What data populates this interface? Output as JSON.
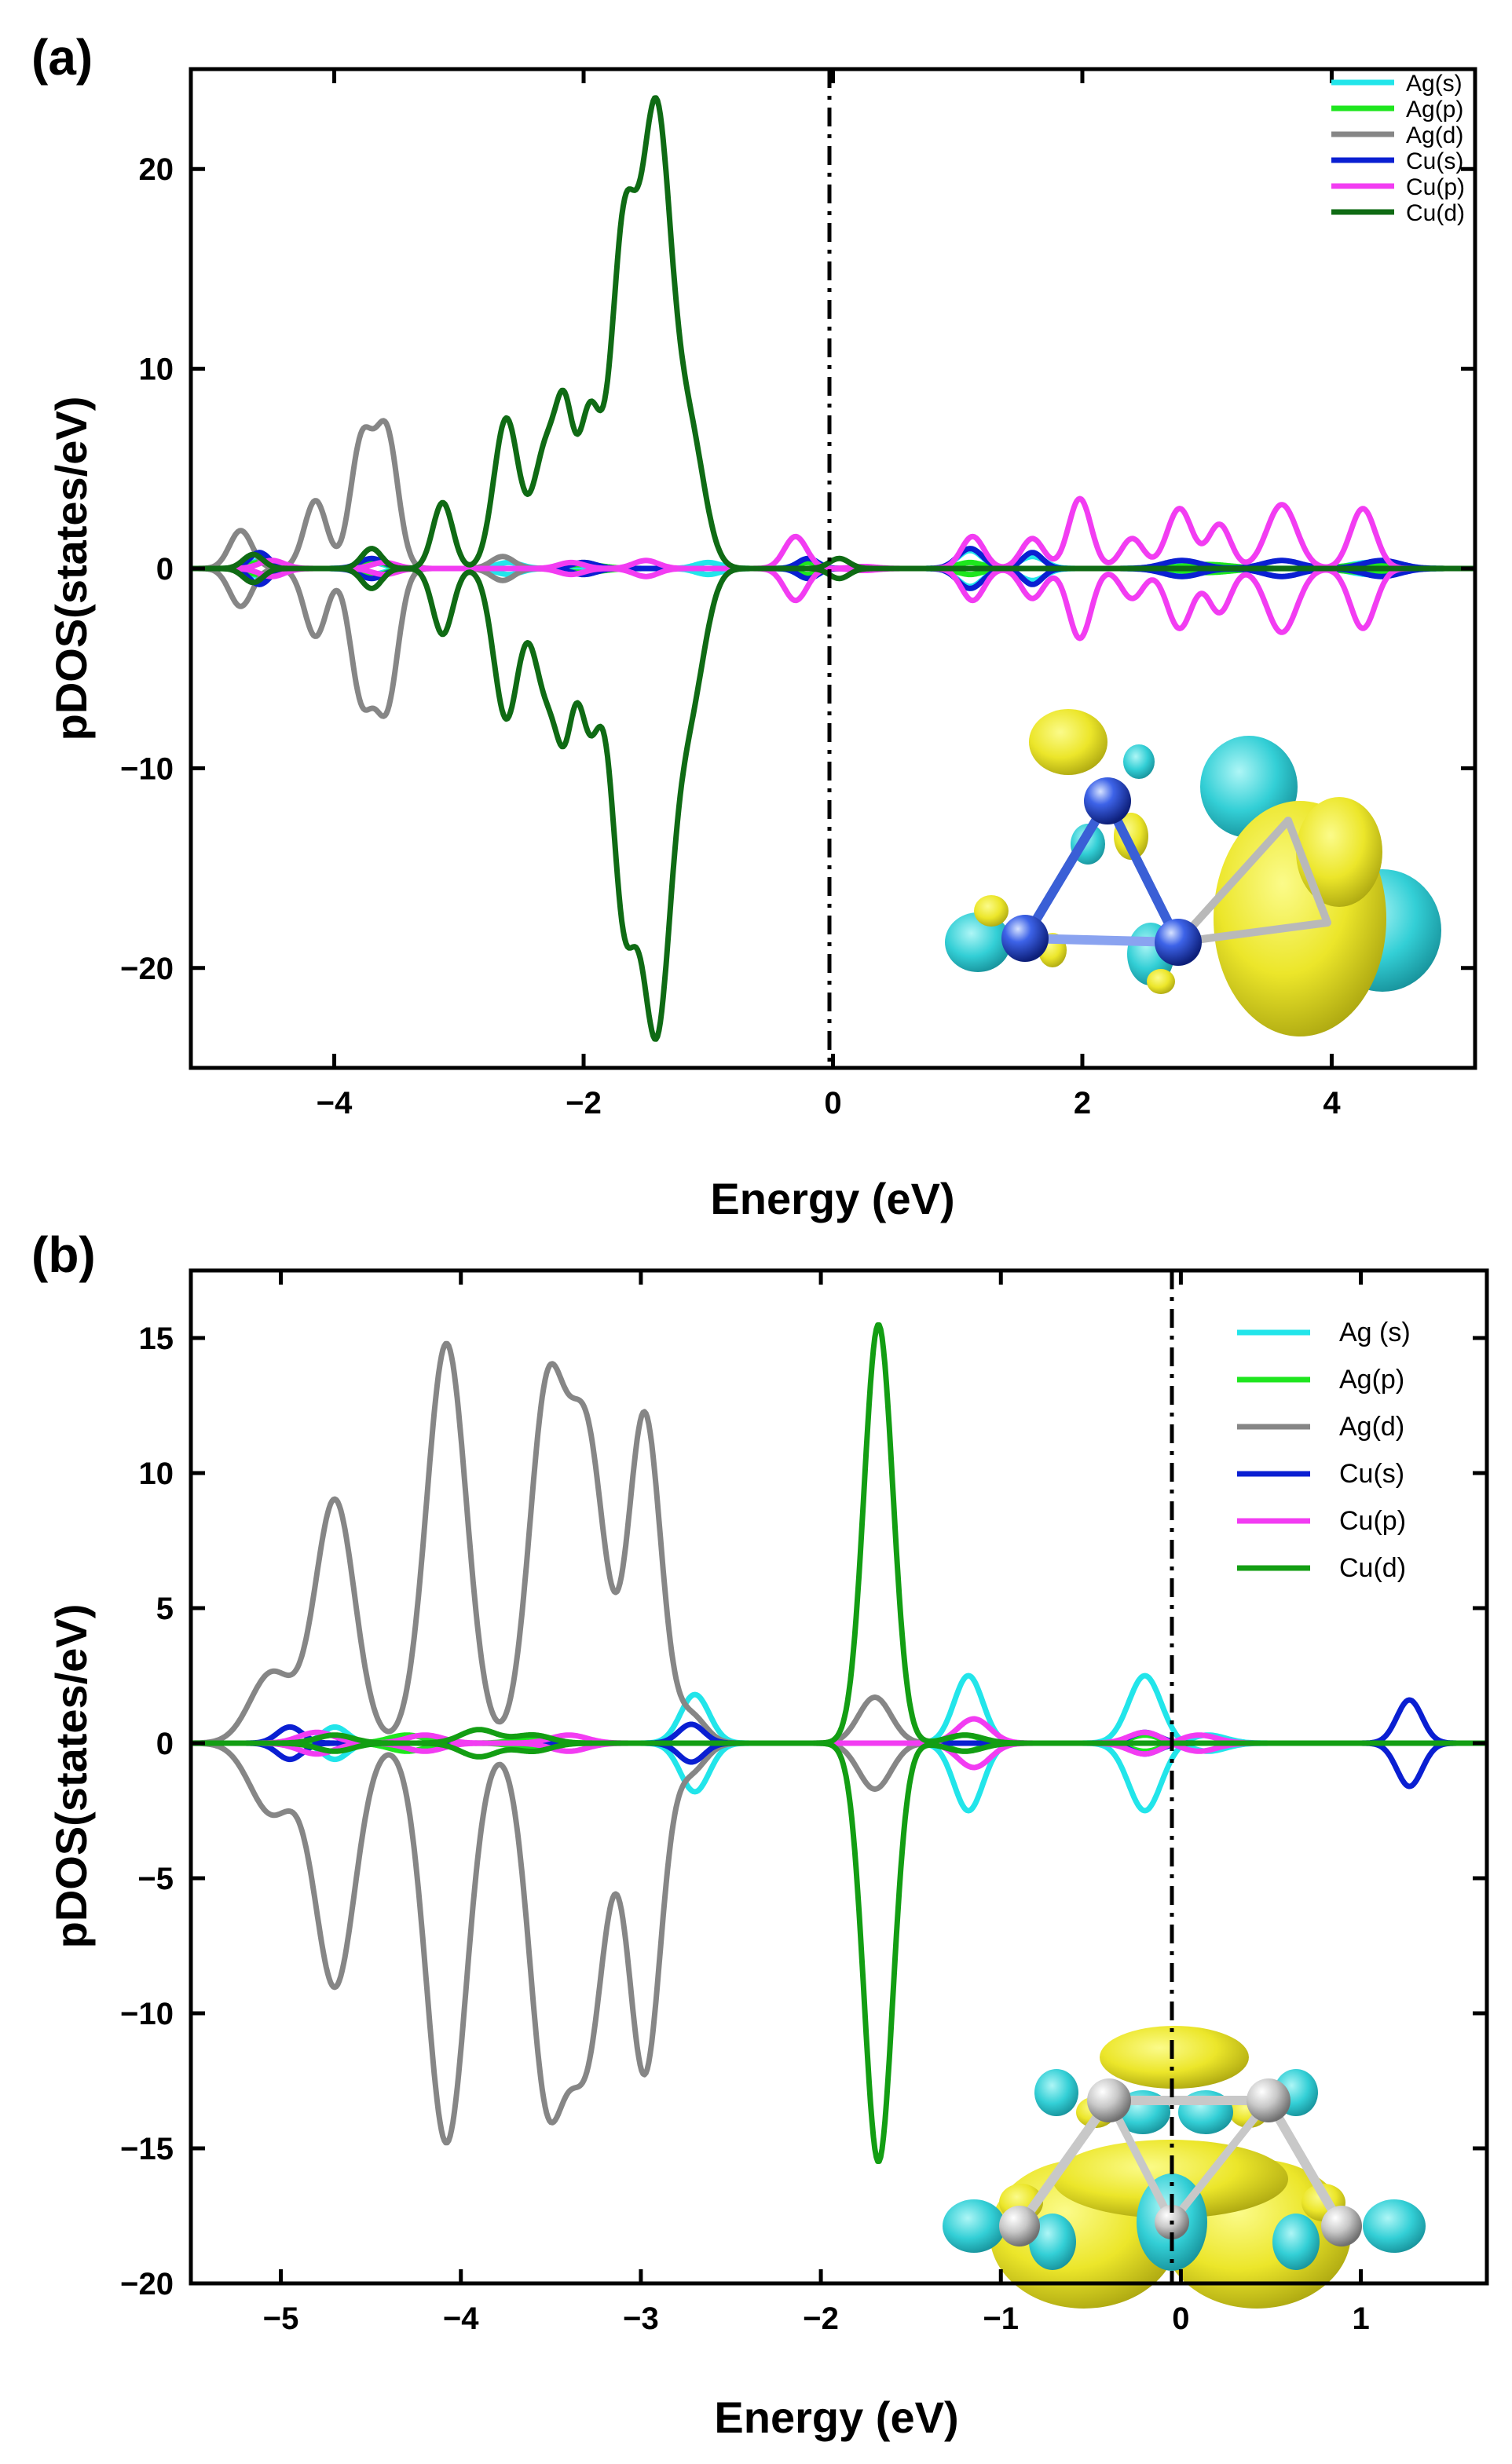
{
  "chart_data": [
    {
      "panel": "(a)",
      "type": "line",
      "xlabel": "Energy (eV)",
      "ylabel": "pDOS(states/eV)",
      "xlim": [
        -5.15,
        5.15
      ],
      "ylim": [
        -25,
        25
      ],
      "xticks": [
        -4,
        -2,
        0,
        2,
        4
      ],
      "xtick_labels": [
        "−4",
        "−2",
        "0",
        "2",
        "4"
      ],
      "yticks": [
        -20,
        -10,
        0,
        10,
        20
      ],
      "ytick_labels": [
        "−20",
        "−10",
        "0",
        "10",
        "20"
      ],
      "fermi_level": 0,
      "inset": "isosurface-molecule",
      "series": [
        {
          "name": "Ag(s)",
          "color": "#22e5ea",
          "peaks": [
            [
              -4.6,
              0.4,
              0.08
            ],
            [
              -3.7,
              0.3,
              0.1
            ],
            [
              -2.6,
              0.3,
              0.1
            ],
            [
              -1.0,
              0.3,
              0.1
            ],
            [
              -0.2,
              0.5,
              0.08
            ],
            [
              1.1,
              0.9,
              0.1
            ],
            [
              1.6,
              0.6,
              0.1
            ],
            [
              2.8,
              0.3,
              0.15
            ],
            [
              4.3,
              0.3,
              0.15
            ]
          ]
        },
        {
          "name": "Ag(p)",
          "color": "#1ee61e",
          "peaks": [
            [
              -4.6,
              0.3,
              0.1
            ],
            [
              -3.7,
              0.4,
              0.1
            ],
            [
              -2.0,
              0.2,
              0.15
            ],
            [
              -0.2,
              0.3,
              0.08
            ],
            [
              1.1,
              0.3,
              0.1
            ],
            [
              3.0,
              0.2,
              0.2
            ],
            [
              4.3,
              0.2,
              0.2
            ]
          ]
        },
        {
          "name": "Ag(d)",
          "color": "#868686",
          "peaks": [
            [
              -4.75,
              1.9,
              0.09
            ],
            [
              -4.15,
              3.4,
              0.09
            ],
            [
              -3.78,
              6.3,
              0.09
            ],
            [
              -3.58,
              6.7,
              0.09
            ],
            [
              -2.65,
              0.6,
              0.09
            ],
            [
              -2.0,
              0.3,
              0.1
            ]
          ]
        },
        {
          "name": "Cu(s)",
          "color": "#0a1fd2",
          "peaks": [
            [
              -4.6,
              0.8,
              0.08
            ],
            [
              -3.7,
              0.5,
              0.1
            ],
            [
              -2.0,
              0.3,
              0.1
            ],
            [
              -0.2,
              0.5,
              0.08
            ],
            [
              1.1,
              1.0,
              0.1
            ],
            [
              1.6,
              0.8,
              0.08
            ],
            [
              2.8,
              0.4,
              0.15
            ],
            [
              3.6,
              0.4,
              0.15
            ],
            [
              4.4,
              0.4,
              0.15
            ]
          ]
        },
        {
          "name": "Cu(p)",
          "color": "#f23cf2",
          "peaks": [
            [
              -4.5,
              0.4,
              0.1
            ],
            [
              -3.6,
              0.3,
              0.1
            ],
            [
              -2.1,
              0.3,
              0.1
            ],
            [
              -1.5,
              0.4,
              0.1
            ],
            [
              -0.3,
              1.6,
              0.09
            ],
            [
              0.25,
              -0.1,
              0.1
            ],
            [
              1.12,
              1.6,
              0.09
            ],
            [
              1.6,
              1.5,
              0.09
            ],
            [
              1.98,
              3.5,
              0.09
            ],
            [
              2.4,
              1.5,
              0.09
            ],
            [
              2.78,
              3.0,
              0.1
            ],
            [
              3.1,
              2.2,
              0.09
            ],
            [
              3.6,
              3.2,
              0.12
            ],
            [
              4.25,
              3.0,
              0.1
            ]
          ]
        },
        {
          "name": "Cu(d)",
          "color": "#0f6b14",
          "peaks": [
            [
              -4.65,
              0.7,
              0.08
            ],
            [
              -3.7,
              1.0,
              0.08
            ],
            [
              -3.13,
              3.3,
              0.08
            ],
            [
              -2.62,
              7.5,
              0.1
            ],
            [
              -2.3,
              6.0,
              0.1
            ],
            [
              -2.15,
              6.2,
              0.07
            ],
            [
              -1.95,
              7.8,
              0.09
            ],
            [
              -1.68,
              16.0,
              0.1
            ],
            [
              -1.42,
              22.5,
              0.12
            ],
            [
              -1.15,
              6.5,
              0.12
            ],
            [
              0.05,
              0.5,
              0.08
            ]
          ]
        }
      ]
    },
    {
      "panel": "(b)",
      "type": "line",
      "xlabel": "Energy (eV)",
      "ylabel": "pDOS(states/eV)",
      "xlim": [
        -5.5,
        1.7
      ],
      "ylim": [
        -20,
        17.5
      ],
      "xticks": [
        -5,
        -4,
        -3,
        -2,
        -1,
        0,
        1
      ],
      "xtick_labels": [
        "−5",
        "−4",
        "−3",
        "−2",
        "−1",
        "0",
        "1"
      ],
      "yticks": [
        -20,
        -15,
        -10,
        -5,
        0,
        5,
        10,
        15
      ],
      "ytick_labels": [
        "−20",
        "−15",
        "−10",
        "−5",
        "0",
        "5",
        "10",
        "15"
      ],
      "fermi_level": 0,
      "inset": "isosurface-molecule",
      "series": [
        {
          "name": "Ag (s)",
          "color": "#22e5ea",
          "peaks": [
            [
              -4.7,
              0.6,
              0.07
            ],
            [
              -2.7,
              1.8,
              0.08
            ],
            [
              -1.18,
              2.5,
              0.08
            ],
            [
              -0.2,
              2.5,
              0.09
            ],
            [
              0.15,
              -0.3,
              0.1
            ]
          ]
        },
        {
          "name": "Ag(p)",
          "color": "#1ee61e",
          "peaks": [
            [
              -4.3,
              0.3,
              0.1
            ],
            [
              -3.6,
              0.2,
              0.1
            ],
            [
              -1.2,
              0.3,
              0.08
            ],
            [
              -0.2,
              0.3,
              0.08
            ]
          ]
        },
        {
          "name": "Ag(d)",
          "color": "#868686",
          "peaks": [
            [
              -5.05,
              2.6,
              0.12
            ],
            [
              -4.7,
              9.0,
              0.11
            ],
            [
              -4.08,
              14.8,
              0.11
            ],
            [
              -3.52,
              12.8,
              0.1
            ],
            [
              -3.3,
              11.0,
              0.1
            ],
            [
              -2.98,
              12.2,
              0.09
            ],
            [
              -2.72,
              1.0,
              0.08
            ],
            [
              -1.7,
              1.7,
              0.09
            ]
          ]
        },
        {
          "name": "Cu(s)",
          "color": "#0a1fd2",
          "peaks": [
            [
              -4.95,
              0.6,
              0.07
            ],
            [
              -2.72,
              0.7,
              0.07
            ],
            [
              -0.2,
              0.4,
              0.08
            ],
            [
              1.27,
              1.6,
              0.07
            ]
          ]
        },
        {
          "name": "Cu(p)",
          "color": "#f23cf2",
          "peaks": [
            [
              -4.8,
              0.4,
              0.1
            ],
            [
              -4.2,
              0.3,
              0.1
            ],
            [
              -3.4,
              0.3,
              0.1
            ],
            [
              -1.15,
              0.9,
              0.09
            ],
            [
              -0.2,
              0.4,
              0.09
            ],
            [
              0.1,
              -0.3,
              0.1
            ]
          ]
        },
        {
          "name": "Cu(d)",
          "color": "#139e13",
          "peaks": [
            [
              -4.7,
              0.3,
              0.1
            ],
            [
              -3.9,
              0.5,
              0.1
            ],
            [
              -3.6,
              0.3,
              0.1
            ],
            [
              -1.68,
              15.5,
              0.08
            ],
            [
              -1.2,
              0.3,
              0.1
            ]
          ]
        }
      ]
    }
  ]
}
